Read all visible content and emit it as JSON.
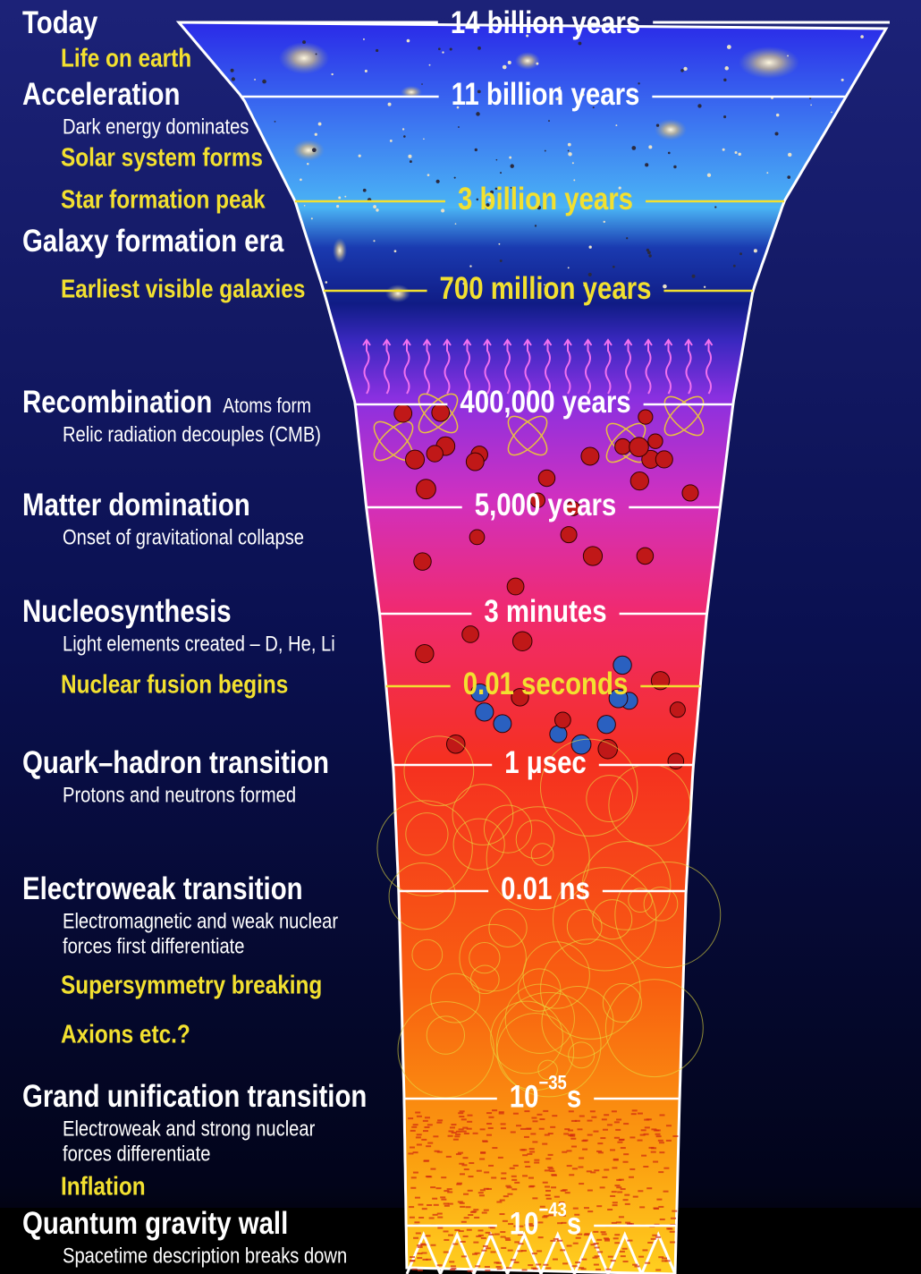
{
  "stages": [
    {
      "name": "Today",
      "time": "14 billion years"
    },
    {
      "name": "Life on earth"
    },
    {
      "name": "Acceleration",
      "notes": [
        "Dark energy dominates"
      ],
      "time": "11 billion years"
    },
    {
      "name": "Solar system forms"
    },
    {
      "name": "Star formation peak",
      "time": "3 billion years"
    },
    {
      "name": "Galaxy formation era"
    },
    {
      "name": "Earliest visible galaxies",
      "time": "700 million years"
    },
    {
      "name": "Recombination",
      "aside": "Atoms form",
      "notes": [
        "Relic radiation decouples (CMB)"
      ],
      "time": "400,000 years"
    },
    {
      "name": "Matter domination",
      "notes": [
        "Onset of gravitational collapse"
      ],
      "time": "5,000 years"
    },
    {
      "name": "Nucleosynthesis",
      "notes": [
        "Light elements created – D, He, Li"
      ],
      "time": "3 minutes"
    },
    {
      "name": "Nuclear fusion begins",
      "time": "0.01 seconds"
    },
    {
      "name": "Quark–hadron transition",
      "notes": [
        "Protons and neutrons formed"
      ],
      "time": "1 μsec"
    },
    {
      "name": "Electroweak transition",
      "notes": [
        "Electromagnetic and weak nuclear",
        "forces first differentiate"
      ],
      "time": "0.01 ns"
    },
    {
      "name": "Supersymmetry breaking"
    },
    {
      "name": "Axions etc.?"
    },
    {
      "name": "Grand unification transition",
      "notes": [
        "Electroweak and strong nuclear",
        "forces differentiate"
      ],
      "time": {
        "base": "10",
        "exponent": "−35",
        "unit": "s"
      }
    },
    {
      "name": "Inflation"
    },
    {
      "name": "Quantum gravity wall",
      "notes": [
        "Spacetime description breaks down"
      ],
      "time": {
        "base": "10",
        "exponent": "−43",
        "unit": "s"
      }
    }
  ]
}
